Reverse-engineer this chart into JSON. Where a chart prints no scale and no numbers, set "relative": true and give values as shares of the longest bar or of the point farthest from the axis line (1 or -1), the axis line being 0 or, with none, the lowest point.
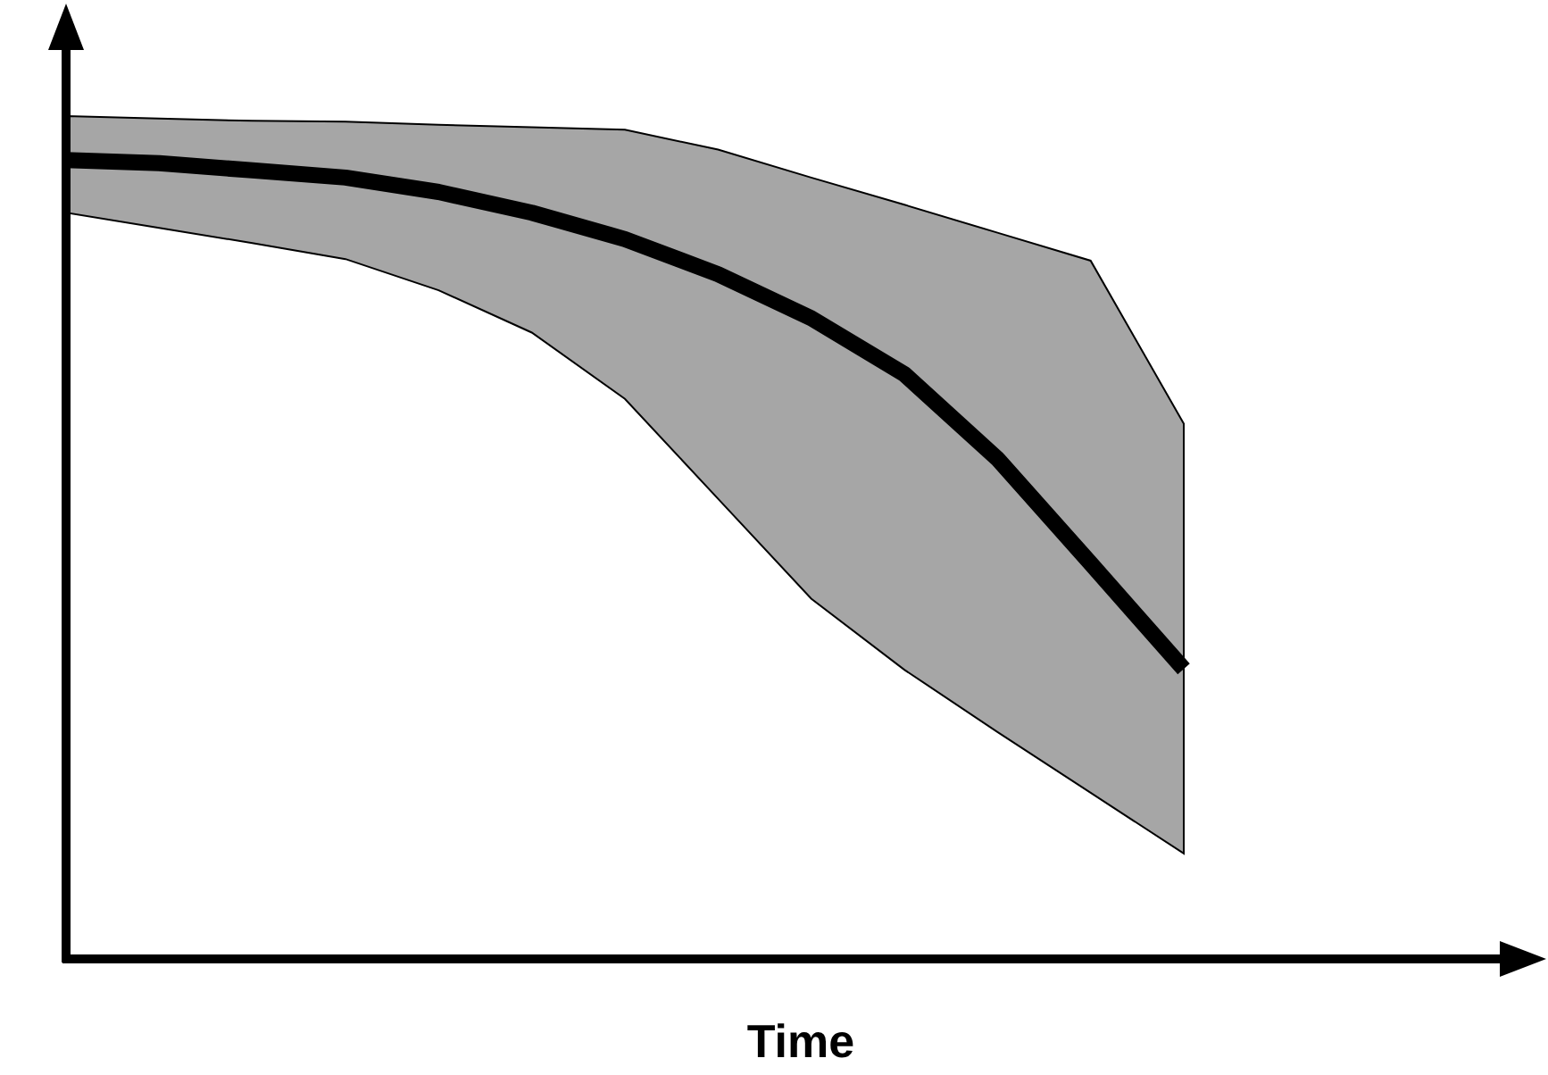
{
  "chart_data": {
    "type": "line",
    "xlabel": "Time",
    "relative": true,
    "tick_labels": false,
    "marker": "none",
    "categories": [
      null,
      null,
      null,
      null,
      null,
      null,
      null,
      null,
      null,
      null,
      null,
      null,
      null
    ],
    "series": [
      {
        "color": "#000000",
        "values": [
          1,
          0.996,
          0.987,
          0.978,
          0.96,
          0.934,
          0.901,
          0.857,
          0.802,
          0.732,
          0.626,
          0.495,
          0.363
        ],
        "upper": [
          1.055,
          1.052,
          1.049,
          1.048,
          1.044,
          1.041,
          1.038,
          1.013,
          0.978,
          0.944,
          0.909,
          0.874,
          0.67
        ],
        "lower": [
          0.934,
          0.915,
          0.896,
          0.876,
          0.837,
          0.784,
          0.701,
          0.576,
          0.451,
          0.362,
          0.284,
          0.208,
          0.132
        ]
      }
    ]
  }
}
